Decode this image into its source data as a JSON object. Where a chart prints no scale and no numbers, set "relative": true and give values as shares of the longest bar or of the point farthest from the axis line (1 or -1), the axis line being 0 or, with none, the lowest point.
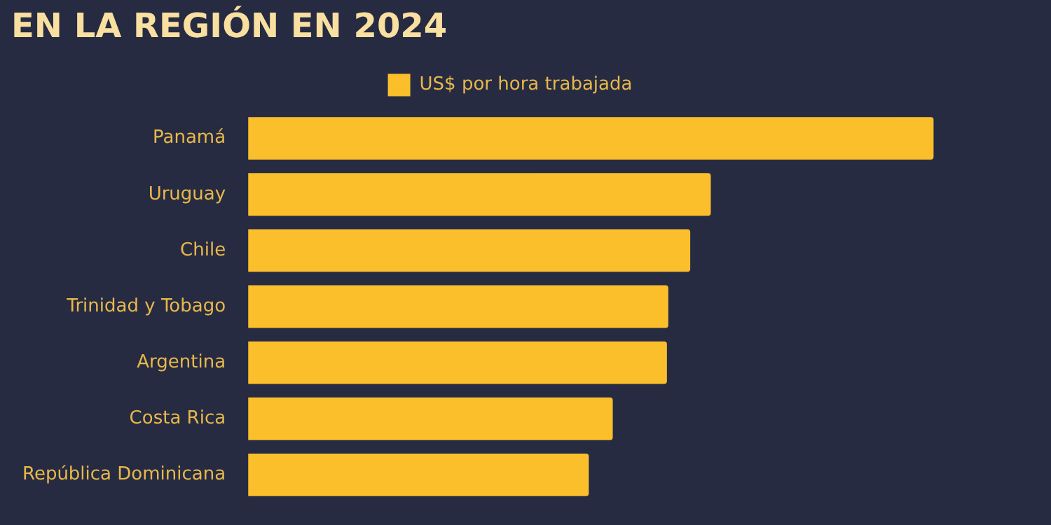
{
  "chart_data": {
    "type": "bar",
    "orientation": "horizontal",
    "relative": true,
    "title": "EN LA REGIÓN EN 2024",
    "categories": [
      "Panamá",
      "Uruguay",
      "Chile",
      "Trinidad y Tobago",
      "Argentina",
      "Costa Rica",
      "República Dominicana"
    ],
    "series": [
      {
        "name": "US$ por hora trabajada",
        "color": "#fbbf2c",
        "values": [
          1,
          0.675,
          0.645,
          0.613,
          0.611,
          0.532,
          0.497
        ]
      }
    ],
    "legend": "top"
  }
}
